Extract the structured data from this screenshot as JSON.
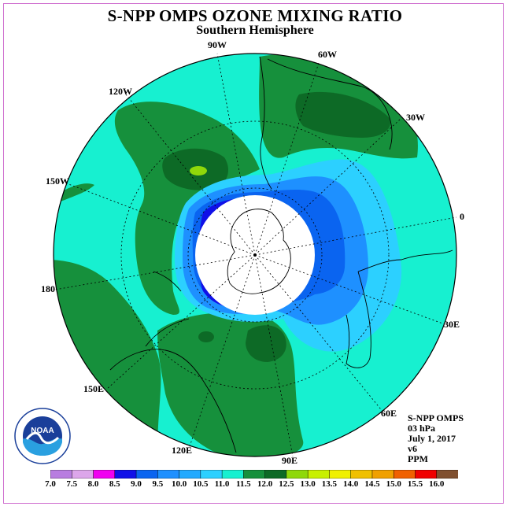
{
  "title": "S-NPP OMPS OZONE MIXING RATIO",
  "subtitle": "Southern Hemisphere",
  "longitude_labels": [
    "90W",
    "60W",
    "120W",
    "30W",
    "150W",
    "0",
    "180",
    "30E",
    "150E",
    "60E",
    "120E",
    "90E"
  ],
  "info": {
    "instrument": "S-NPP OMPS",
    "level": "03 hPa",
    "date": "July 1, 2017",
    "version": "v6",
    "units": "PPM"
  },
  "colorbar": {
    "labels": [
      "7.0",
      "7.5",
      "8.0",
      "8.5",
      "9.0",
      "9.5",
      "10.0",
      "10.5",
      "11.0",
      "11.5",
      "12.0",
      "12.5",
      "13.0",
      "13.5",
      "14.0",
      "14.5",
      "15.0",
      "15.5",
      "16.0"
    ],
    "colors": [
      "#b87de0",
      "#dca6ea",
      "#f000f0",
      "#1010e8",
      "#0a64f0",
      "#1e90ff",
      "#22aaff",
      "#2cd0ff",
      "#17f0d0",
      "#16903c",
      "#0d6a26",
      "#8fd80a",
      "#c8f000",
      "#f0f000",
      "#f0c000",
      "#f0a000",
      "#f06000",
      "#f00000",
      "#805030"
    ]
  },
  "logo_text": "NOAA",
  "colors": {
    "frame": "#d070d0",
    "ocean_green": "#16903c",
    "dark_green": "#0d6a26",
    "cyan": "#17f0d0",
    "light_blue": "#2cd0ff",
    "blue": "#1e90ff",
    "deep_blue": "#1010e8"
  }
}
